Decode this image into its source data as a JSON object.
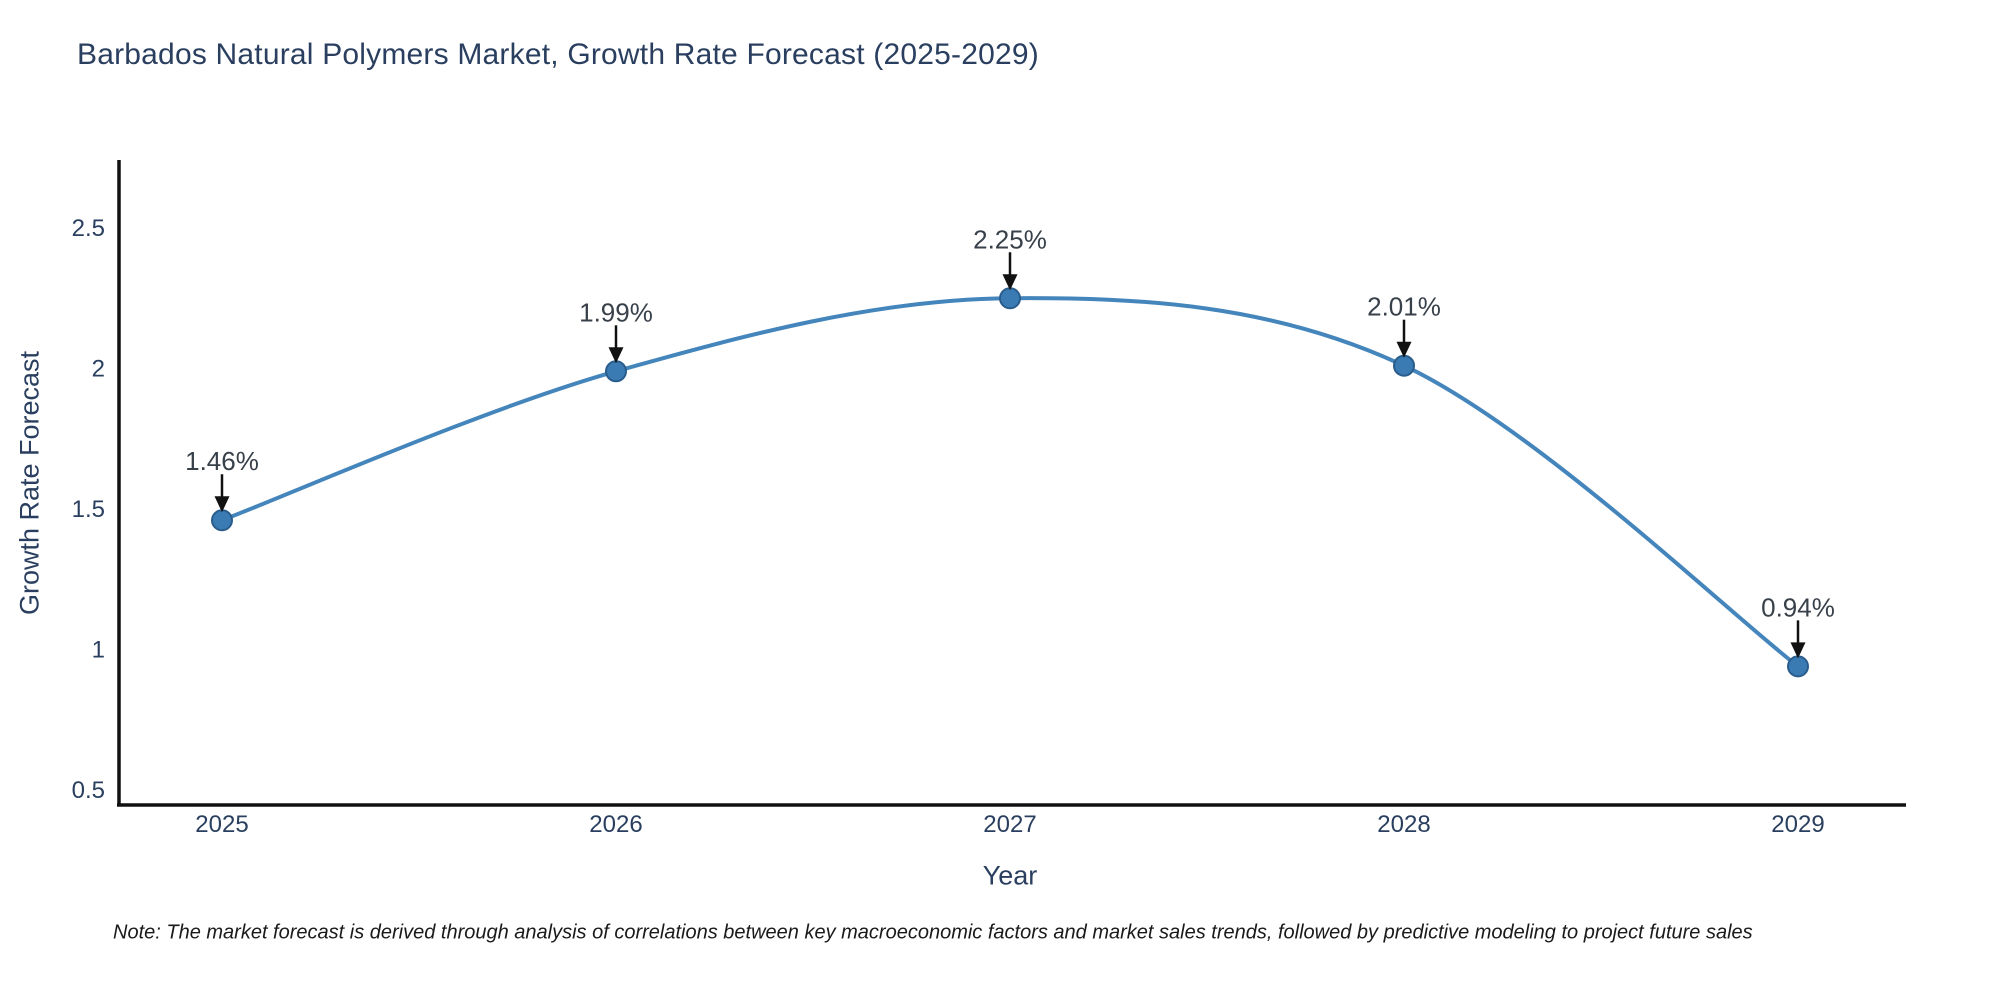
{
  "header": {
    "title": "Barbados Natural Polymers Market, Growth Rate Forecast (2025-2029)"
  },
  "footnote": {
    "text": "Note: The market forecast is derived through analysis of correlations between key macroeconomic factors and market sales trends, followed by predictive modeling to project future sales"
  },
  "chart_data": {
    "type": "line",
    "line_shape": "spline",
    "title": "Barbados Natural Polymers Market, Growth Rate Forecast (2025-2029)",
    "xlabel": "Year",
    "ylabel": "Growth Rate Forecast",
    "categories": [
      "2025",
      "2026",
      "2027",
      "2028",
      "2029"
    ],
    "series": [
      {
        "name": "Growth Rate Forecast",
        "values": [
          1.46,
          1.99,
          2.25,
          2.01,
          0.94
        ],
        "point_labels": [
          "1.46%",
          "1.99%",
          "2.25%",
          "2.01%",
          "0.94%"
        ]
      }
    ],
    "y_tick_values": [
      0.5,
      1,
      1.5,
      2,
      2.5
    ],
    "y_tick_labels": [
      "0.5",
      "1",
      "1.5",
      "2",
      "2.5"
    ],
    "ylim": [
      0.45,
      2.74
    ],
    "grid": false,
    "legend": false,
    "annotation_style": "value-label-with-down-arrow-to-point",
    "colors": {
      "line": "#4485bb",
      "marker_fill": "#3b7bb3",
      "marker_edge": "#2a5d8c",
      "axis": "#111111",
      "axis_text": "#2a3f5f",
      "annotation_text": "#38404a",
      "arrow": "#111111",
      "background": "#ffffff"
    }
  }
}
